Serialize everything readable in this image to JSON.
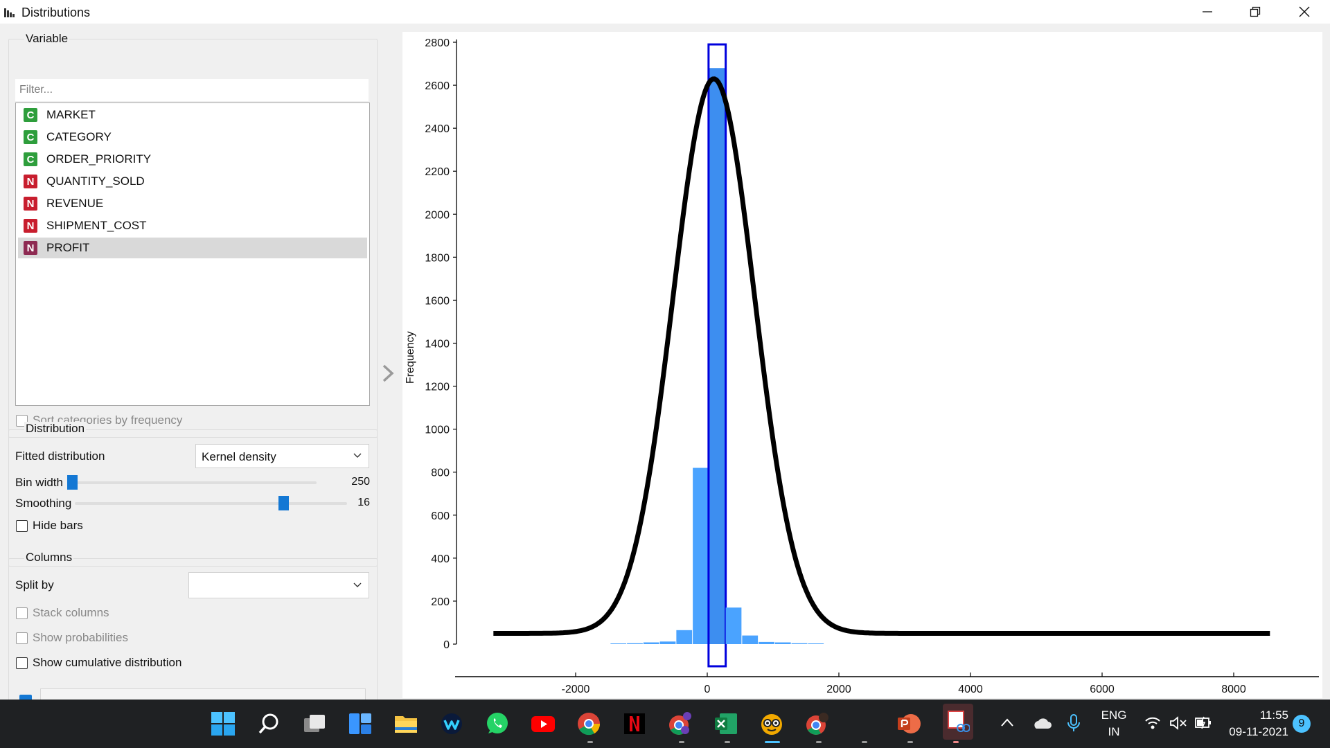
{
  "window": {
    "title": "Distributions",
    "icon": "bar-chart-icon",
    "buttons": [
      "minimize-icon",
      "restore-icon",
      "close-icon"
    ]
  },
  "variable_box": {
    "title": "Variable",
    "filter_placeholder": "Filter...",
    "items": [
      {
        "type": "C",
        "label": "MARKET"
      },
      {
        "type": "C",
        "label": "CATEGORY"
      },
      {
        "type": "C",
        "label": "ORDER_PRIORITY"
      },
      {
        "type": "N",
        "label": "QUANTITY_SOLD"
      },
      {
        "type": "N",
        "label": "REVENUE"
      },
      {
        "type": "N",
        "label": "SHIPMENT_COST"
      },
      {
        "type": "N",
        "label": "PROFIT",
        "selected": true
      }
    ],
    "sort_label": "Sort categories by frequency"
  },
  "distribution_box": {
    "title": "Distribution",
    "fitted_label": "Fitted distribution",
    "fitted_value": "Kernel density",
    "bin_width_label": "Bin width",
    "bin_width_value": "250",
    "bin_width_position": 0.0,
    "smoothing_label": "Smoothing",
    "smoothing_value": "16",
    "smoothing_position": 0.76,
    "hide_bars_label": "Hide bars"
  },
  "columns_box": {
    "title": "Columns",
    "split_by_label": "Split by",
    "split_by_value": "",
    "stack_label": "Stack columns",
    "probabilities_label": "Show probabilities",
    "cumulative_label": "Show cumulative distribution"
  },
  "chart_data": {
    "type": "bar",
    "ylabel": "Frequency",
    "xlim": [
      -3400,
      8700
    ],
    "ylim": [
      0,
      2800
    ],
    "xticks": [
      -2000,
      0,
      2000,
      4000,
      6000,
      8000
    ],
    "yticks": [
      0,
      200,
      400,
      600,
      800,
      1000,
      1200,
      1400,
      1600,
      1800,
      2000,
      2200,
      2400,
      2600,
      2800
    ],
    "bin_width": 250,
    "bins": [
      {
        "x0": -1250,
        "value": 2
      },
      {
        "x0": -1000,
        "value": 4
      },
      {
        "x0": -750,
        "value": 8
      },
      {
        "x0": -500,
        "value": 12
      },
      {
        "x0": -250,
        "value": 65
      },
      {
        "x0": 0,
        "value": 820
      },
      {
        "x0": 250,
        "value": 2680,
        "selected": true
      },
      {
        "x0": 500,
        "value": 170
      },
      {
        "x0": 750,
        "value": 40
      },
      {
        "x0": 1000,
        "value": 10
      },
      {
        "x0": 1250,
        "value": 8
      },
      {
        "x0": 1500,
        "value": 4
      },
      {
        "x0": 1750,
        "value": 2
      }
    ],
    "density_curve": {
      "baseline": 50,
      "peak_x": 100,
      "peak_y": 2630,
      "sigma": 620,
      "x_range": [
        -3250,
        8550
      ]
    },
    "bar_color": "#4aa3ff",
    "selected_bar_color": "#3d8ef0",
    "selection_outline_color": "#0000dd",
    "curve_color": "#000000"
  },
  "taskbar": {
    "apps": [
      "windows-start-icon",
      "search-icon",
      "task-view-icon",
      "widgets-icon",
      "file-explorer-icon",
      "webex-icon",
      "whatsapp-icon",
      "youtube-icon",
      "chrome-icon",
      "netflix-icon",
      "chrome-profile-icon",
      "excel-icon",
      "orange-app-icon",
      "chrome-profile-2-icon",
      "powerpoint-icon",
      "snipping-tool-icon"
    ],
    "language": "ENG",
    "region": "IN",
    "time": "11:55",
    "date": "09-11-2021",
    "notification_count": "9"
  }
}
